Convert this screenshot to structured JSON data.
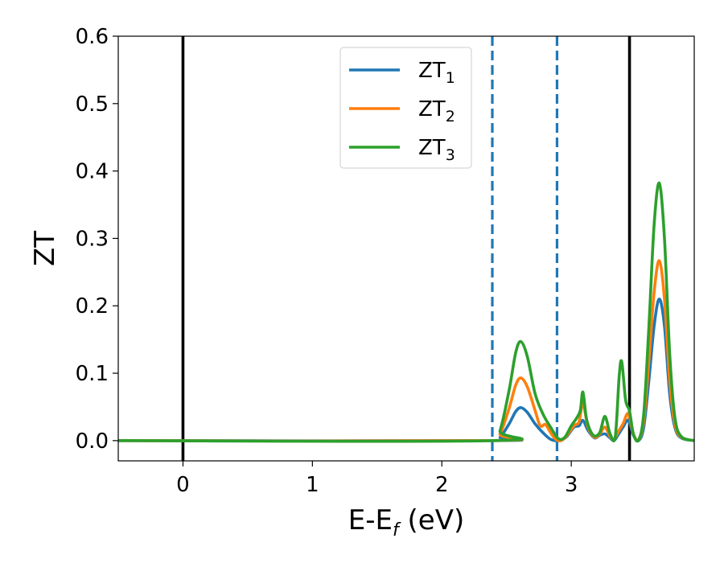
{
  "chart_data": {
    "type": "line",
    "xlabel": "E-E",
    "xlabel_sub": "f",
    "xlabel_unit": " (eV)",
    "ylabel": "ZT",
    "xlim": [
      -0.5,
      3.95
    ],
    "ylim": [
      -0.03,
      0.6
    ],
    "xticks": [
      0,
      1,
      2,
      3
    ],
    "xtick_labels": [
      "0",
      "1",
      "2",
      "3"
    ],
    "yticks": [
      0.0,
      0.1,
      0.2,
      0.3,
      0.4,
      0.5,
      0.6
    ],
    "ytick_labels": [
      "0.0",
      "0.1",
      "0.2",
      "0.3",
      "0.4",
      "0.5",
      "0.6"
    ],
    "grid": false,
    "legend": {
      "placement": "top-center"
    },
    "vlines": [
      {
        "x": 0.0,
        "style": "solid",
        "color": "#000000"
      },
      {
        "x": 3.45,
        "style": "solid",
        "color": "#000000"
      },
      {
        "x": 2.39,
        "style": "dashed",
        "color": "#1f77b4"
      },
      {
        "x": 2.89,
        "style": "dashed",
        "color": "#1f77b4"
      }
    ],
    "series": [
      {
        "name": "ZT",
        "sub": "1",
        "color": "#1f77b4",
        "points": [
          [
            -0.5,
            0
          ],
          [
            2.39,
            0
          ],
          [
            2.45,
            0.005
          ],
          [
            2.52,
            0.025
          ],
          [
            2.57,
            0.043
          ],
          [
            2.61,
            0.049
          ],
          [
            2.66,
            0.042
          ],
          [
            2.72,
            0.025
          ],
          [
            2.78,
            0.012
          ],
          [
            2.84,
            0.002
          ],
          [
            2.9,
            0.0
          ],
          [
            2.96,
            0.005
          ],
          [
            3.02,
            0.02
          ],
          [
            3.06,
            0.022
          ],
          [
            3.09,
            0.03
          ],
          [
            3.13,
            0.015
          ],
          [
            3.18,
            0.004
          ],
          [
            3.22,
            0.008
          ],
          [
            3.26,
            0.01
          ],
          [
            3.3,
            0.004
          ],
          [
            3.33,
            0.0
          ],
          [
            3.36,
            0.008
          ],
          [
            3.4,
            0.02
          ],
          [
            3.44,
            0.03
          ],
          [
            3.48,
            0.008
          ],
          [
            3.52,
            0.0
          ],
          [
            3.56,
            0.02
          ],
          [
            3.6,
            0.09
          ],
          [
            3.64,
            0.17
          ],
          [
            3.68,
            0.21
          ],
          [
            3.72,
            0.17
          ],
          [
            3.76,
            0.07
          ],
          [
            3.8,
            0.02
          ],
          [
            3.85,
            0.004
          ],
          [
            3.95,
            0
          ]
        ]
      },
      {
        "name": "ZT",
        "sub": "2",
        "color": "#ff7f0e",
        "points": [
          [
            -0.5,
            0
          ],
          [
            2.39,
            0
          ],
          [
            2.45,
            0.01
          ],
          [
            2.52,
            0.048
          ],
          [
            2.57,
            0.082
          ],
          [
            2.61,
            0.093
          ],
          [
            2.66,
            0.08
          ],
          [
            2.72,
            0.045
          ],
          [
            2.76,
            0.022
          ],
          [
            2.8,
            0.024
          ],
          [
            2.84,
            0.012
          ],
          [
            2.88,
            0.002
          ],
          [
            2.92,
            0.0
          ],
          [
            2.96,
            0.006
          ],
          [
            3.02,
            0.022
          ],
          [
            3.06,
            0.028
          ],
          [
            3.09,
            0.055
          ],
          [
            3.13,
            0.02
          ],
          [
            3.18,
            0.005
          ],
          [
            3.22,
            0.01
          ],
          [
            3.26,
            0.02
          ],
          [
            3.3,
            0.006
          ],
          [
            3.33,
            0.002
          ],
          [
            3.36,
            0.012
          ],
          [
            3.4,
            0.025
          ],
          [
            3.44,
            0.04
          ],
          [
            3.48,
            0.01
          ],
          [
            3.52,
            0.001
          ],
          [
            3.56,
            0.03
          ],
          [
            3.6,
            0.12
          ],
          [
            3.64,
            0.22
          ],
          [
            3.68,
            0.267
          ],
          [
            3.72,
            0.21
          ],
          [
            3.76,
            0.09
          ],
          [
            3.8,
            0.025
          ],
          [
            3.85,
            0.005
          ],
          [
            3.95,
            0
          ]
        ]
      },
      {
        "name": "ZT",
        "sub": "3",
        "color": "#2ca02c",
        "points": [
          [
            -0.5,
            0
          ],
          [
            2.39,
            0
          ],
          [
            2.45,
            0.015
          ],
          [
            2.52,
            0.075
          ],
          [
            2.57,
            0.13
          ],
          [
            2.61,
            0.147
          ],
          [
            2.66,
            0.125
          ],
          [
            2.72,
            0.07
          ],
          [
            2.78,
            0.04
          ],
          [
            2.84,
            0.02
          ],
          [
            2.9,
            0.003
          ],
          [
            2.95,
            0.005
          ],
          [
            3.0,
            0.022
          ],
          [
            3.04,
            0.033
          ],
          [
            3.07,
            0.045
          ],
          [
            3.09,
            0.072
          ],
          [
            3.12,
            0.03
          ],
          [
            3.17,
            0.008
          ],
          [
            3.22,
            0.012
          ],
          [
            3.26,
            0.036
          ],
          [
            3.3,
            0.01
          ],
          [
            3.34,
            0.006
          ],
          [
            3.37,
            0.095
          ],
          [
            3.39,
            0.117
          ],
          [
            3.42,
            0.06
          ],
          [
            3.45,
            0.044
          ],
          [
            3.48,
            0.01
          ],
          [
            3.52,
            0.001
          ],
          [
            3.56,
            0.04
          ],
          [
            3.6,
            0.17
          ],
          [
            3.64,
            0.32
          ],
          [
            3.68,
            0.382
          ],
          [
            3.72,
            0.3
          ],
          [
            3.76,
            0.13
          ],
          [
            3.8,
            0.035
          ],
          [
            3.85,
            0.006
          ],
          [
            3.95,
            0
          ]
        ]
      }
    ]
  }
}
